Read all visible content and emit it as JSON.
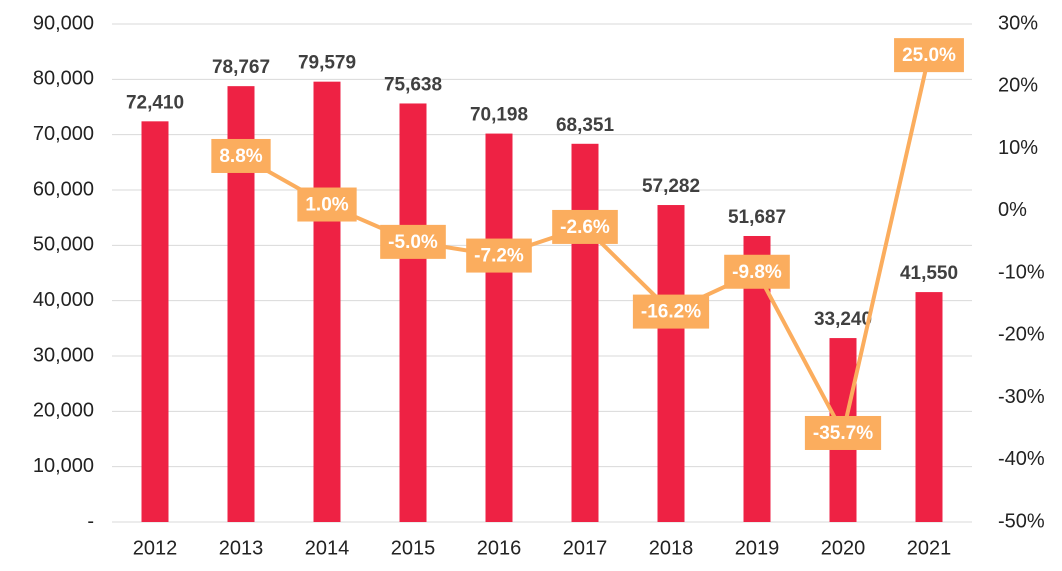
{
  "chart_data": {
    "type": "bar",
    "categories": [
      "2012",
      "2013",
      "2014",
      "2015",
      "2016",
      "2017",
      "2018",
      "2019",
      "2020",
      "2021"
    ],
    "series": [
      {
        "type": "bar",
        "color": "#ee2244",
        "axis": "y",
        "values": [
          72410,
          78767,
          79579,
          75638,
          70198,
          68351,
          57282,
          51687,
          33240,
          41550
        ],
        "value_labels": [
          "72,410",
          "78,767",
          "79,579",
          "75,638",
          "70,198",
          "68,351",
          "57,282",
          "51,687",
          "33,240",
          "41,550"
        ]
      },
      {
        "type": "line",
        "color": "#fbad5e",
        "axis": "y2",
        "values": [
          null,
          8.8,
          1.0,
          -5.0,
          -7.2,
          -2.6,
          -16.2,
          -9.8,
          -35.7,
          25.0
        ],
        "value_labels": [
          null,
          "8.8%",
          "1.0%",
          "-5.0%",
          "-7.2%",
          "-2.6%",
          "-16.2%",
          "-9.8%",
          "-35.7%",
          "25.0%"
        ]
      }
    ],
    "ylim": [
      0,
      90000
    ],
    "yticks": [
      {
        "value": 0,
        "label": "-"
      },
      {
        "value": 10000,
        "label": "10,000"
      },
      {
        "value": 20000,
        "label": "20,000"
      },
      {
        "value": 30000,
        "label": "30,000"
      },
      {
        "value": 40000,
        "label": "40,000"
      },
      {
        "value": 50000,
        "label": "50,000"
      },
      {
        "value": 60000,
        "label": "60,000"
      },
      {
        "value": 70000,
        "label": "70,000"
      },
      {
        "value": 80000,
        "label": "80,000"
      },
      {
        "value": 90000,
        "label": "90,000"
      }
    ],
    "y2lim": [
      -50,
      30
    ],
    "y2ticks": [
      {
        "value": -50,
        "label": "-50%"
      },
      {
        "value": -40,
        "label": "-40%"
      },
      {
        "value": -30,
        "label": "-30%"
      },
      {
        "value": -20,
        "label": "-20%"
      },
      {
        "value": -10,
        "label": "-10%"
      },
      {
        "value": 0,
        "label": "0%"
      },
      {
        "value": 10,
        "label": "10%"
      },
      {
        "value": 20,
        "label": "20%"
      },
      {
        "value": 30,
        "label": "30%"
      }
    ],
    "grid": true
  }
}
